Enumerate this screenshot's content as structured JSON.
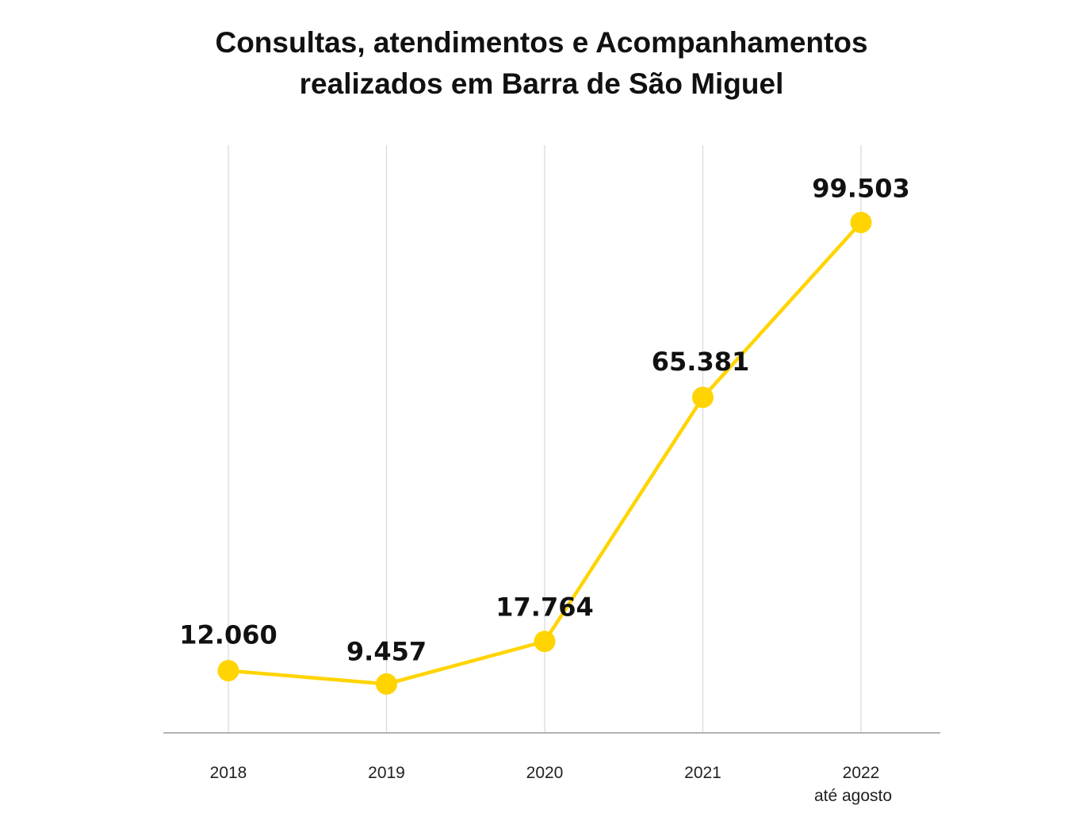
{
  "chart_data": {
    "type": "line",
    "title_lines": [
      "Consultas, atendimentos e Acompanhamentos",
      "realizados em Barra de São Miguel"
    ],
    "categories": [
      "2018",
      "2019",
      "2020",
      "2021",
      "2022"
    ],
    "category_sublabels": [
      "",
      "",
      "",
      "",
      "até agosto"
    ],
    "values": [
      12060,
      9457,
      17764,
      65381,
      99503
    ],
    "value_labels": [
      "12.060",
      "9.457",
      "17.764",
      "65.381",
      "99.503"
    ],
    "ylim": [
      0,
      110000
    ],
    "grid": true,
    "line_color": "#FFD400",
    "grid_color": "#d9d9d9",
    "axis_color": "#9a9a9a",
    "text_color": "#111111"
  }
}
